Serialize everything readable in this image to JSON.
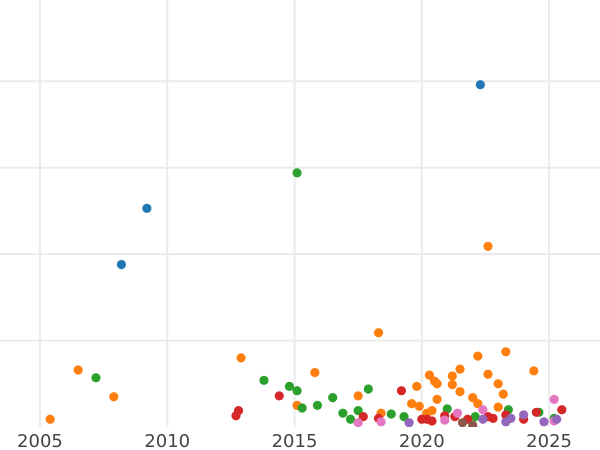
{
  "chart_data": {
    "type": "scatter",
    "title": "",
    "xlabel": "",
    "ylabel": "",
    "xlim": [
      2003.43,
      2027.0
    ],
    "ylim": [
      0,
      4.94
    ],
    "grid": true,
    "x_ticks": [
      2005,
      2010,
      2015,
      2020,
      2025
    ],
    "x_tick_labels": [
      "2005",
      "2010",
      "2015",
      "2020",
      "2025"
    ],
    "y_gridlines": [
      1,
      2,
      3,
      4
    ],
    "series": [
      {
        "name": "blue",
        "color": "#1f77b4",
        "points": [
          [
            2008.2,
            1.88
          ],
          [
            2009.2,
            2.53
          ],
          [
            2022.3,
            3.96
          ]
        ]
      },
      {
        "name": "orange",
        "color": "#ff7f0e",
        "points": [
          [
            2005.4,
            0.09
          ],
          [
            2006.5,
            0.66
          ],
          [
            2007.9,
            0.35
          ],
          [
            2012.9,
            0.8
          ],
          [
            2015.8,
            0.63
          ],
          [
            2015.1,
            0.25
          ],
          [
            2017.5,
            0.36
          ],
          [
            2018.3,
            1.09
          ],
          [
            2018.4,
            0.16
          ],
          [
            2019.6,
            0.27
          ],
          [
            2019.8,
            0.47
          ],
          [
            2019.9,
            0.24
          ],
          [
            2020.2,
            0.16
          ],
          [
            2020.3,
            0.6
          ],
          [
            2020.4,
            0.19
          ],
          [
            2020.5,
            0.53
          ],
          [
            2020.6,
            0.5
          ],
          [
            2020.6,
            0.32
          ],
          [
            2021.2,
            0.49
          ],
          [
            2021.2,
            0.59
          ],
          [
            2021.5,
            0.67
          ],
          [
            2021.5,
            0.41
          ],
          [
            2022.0,
            0.34
          ],
          [
            2022.2,
            0.82
          ],
          [
            2022.2,
            0.27
          ],
          [
            2022.6,
            0.61
          ],
          [
            2022.6,
            2.09
          ],
          [
            2023.0,
            0.23
          ],
          [
            2023.0,
            0.5
          ],
          [
            2023.2,
            0.38
          ],
          [
            2023.3,
            0.87
          ],
          [
            2024.4,
            0.65
          ]
        ]
      },
      {
        "name": "green",
        "color": "#2ca02c",
        "points": [
          [
            2007.2,
            0.57
          ],
          [
            2013.8,
            0.54
          ],
          [
            2014.8,
            0.47
          ],
          [
            2015.1,
            2.94
          ],
          [
            2015.1,
            0.42
          ],
          [
            2015.3,
            0.22
          ],
          [
            2015.9,
            0.25
          ],
          [
            2016.5,
            0.34
          ],
          [
            2016.9,
            0.16
          ],
          [
            2017.2,
            0.09
          ],
          [
            2017.5,
            0.19
          ],
          [
            2017.9,
            0.44
          ],
          [
            2018.8,
            0.15
          ],
          [
            2019.3,
            0.12
          ],
          [
            2021.0,
            0.21
          ],
          [
            2022.1,
            0.12
          ],
          [
            2023.4,
            0.2
          ],
          [
            2024.6,
            0.17
          ],
          [
            2025.2,
            0.1
          ]
        ]
      },
      {
        "name": "red",
        "color": "#d62728",
        "points": [
          [
            2012.7,
            0.13
          ],
          [
            2012.8,
            0.19
          ],
          [
            2014.4,
            0.36
          ],
          [
            2017.7,
            0.12
          ],
          [
            2018.3,
            0.1
          ],
          [
            2019.2,
            0.42
          ],
          [
            2020.0,
            0.09
          ],
          [
            2020.2,
            0.09
          ],
          [
            2020.4,
            0.07
          ],
          [
            2020.9,
            0.13
          ],
          [
            2021.3,
            0.12
          ],
          [
            2021.8,
            0.09
          ],
          [
            2022.6,
            0.12
          ],
          [
            2022.8,
            0.1
          ],
          [
            2023.3,
            0.14
          ],
          [
            2024.0,
            0.09
          ],
          [
            2024.5,
            0.17
          ],
          [
            2025.5,
            0.2
          ]
        ]
      },
      {
        "name": "pink",
        "color": "#e377c2",
        "points": [
          [
            2017.5,
            0.05
          ],
          [
            2018.4,
            0.06
          ],
          [
            2020.9,
            0.08
          ],
          [
            2021.4,
            0.16
          ],
          [
            2022.4,
            0.2
          ],
          [
            2025.2,
            0.32
          ],
          [
            2025.2,
            0.07
          ]
        ]
      },
      {
        "name": "purple",
        "color": "#9467bd",
        "points": [
          [
            2019.5,
            0.05
          ],
          [
            2022.4,
            0.09
          ],
          [
            2023.3,
            0.06
          ],
          [
            2023.5,
            0.1
          ],
          [
            2024.0,
            0.14
          ],
          [
            2024.8,
            0.06
          ],
          [
            2025.3,
            0.09
          ]
        ]
      },
      {
        "name": "brown",
        "color": "#8c564b",
        "points": [
          [
            2021.6,
            0.05
          ],
          [
            2022.0,
            0.02
          ]
        ]
      }
    ]
  }
}
